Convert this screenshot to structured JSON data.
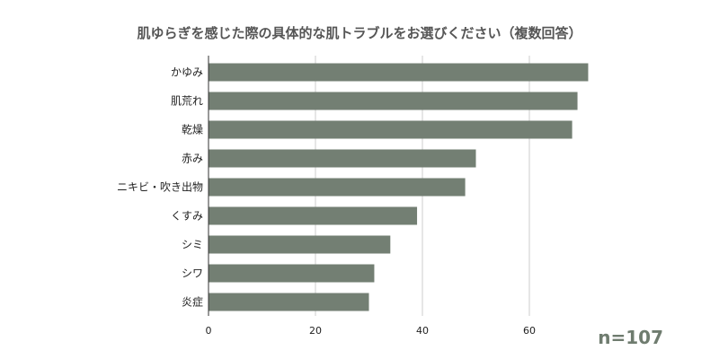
{
  "chart_data": {
    "type": "bar",
    "orientation": "horizontal",
    "title": "肌ゆらぎを感じた際の具体的な肌トラブルをお選びください（複数回答）",
    "categories": [
      "かゆみ",
      "肌荒れ",
      "乾燥",
      "赤み",
      "ニキビ・吹き出物",
      "くすみ",
      "シミ",
      "シワ",
      "炎症"
    ],
    "values": [
      71,
      69,
      68,
      50,
      48,
      39,
      34,
      31,
      30
    ],
    "xlim": [
      0,
      75
    ],
    "xticks": [
      0,
      20,
      40,
      60
    ],
    "grid": true,
    "bar_color": "#737f73",
    "grid_color": "#cccccc",
    "axis_color": "#333333"
  },
  "annotation": {
    "sample_size": "n=107",
    "color": "#6f7c6f"
  }
}
